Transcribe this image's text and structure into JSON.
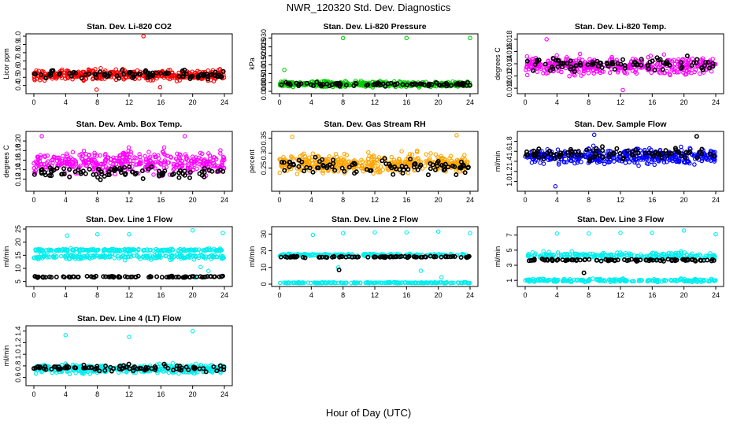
{
  "title": "NWR_120320  Std. Dev. Diagnostics",
  "xlabel": "Hour of Day (UTC)",
  "chart_data": [
    {
      "type": "scatter",
      "title": "Stan. Dev. Li-820 CO2",
      "ylabel": "Licor ppm",
      "xlim": [
        0,
        24
      ],
      "ylim": [
        0.33,
        1.0
      ],
      "xticks": [
        "0",
        "4",
        "8",
        "12",
        "16",
        "20",
        "24"
      ],
      "yticks": [
        "0.4",
        "0.5",
        "0.6",
        "0.7",
        "0.8",
        "0.9",
        "1.0"
      ],
      "series": [
        {
          "color": "#ff0000",
          "center": 0.53,
          "spread": 0.06,
          "outliers": [
            [
              13.8,
              1.0
            ],
            [
              7.9,
              0.35
            ],
            [
              15.9,
              0.38
            ]
          ]
        },
        {
          "color": "#000000",
          "center": 0.53,
          "spread": 0.05,
          "outliers": []
        }
      ]
    },
    {
      "type": "scatter",
      "title": "Stan. Dev. Li-820 Pressure",
      "ylabel": "kPa",
      "xlim": [
        0,
        24
      ],
      "ylim": [
        0,
        0.031
      ],
      "xticks": [
        "0",
        "4",
        "8",
        "12",
        "16",
        "20",
        "24"
      ],
      "yticks": [
        "0.000",
        "0.005",
        "0.010",
        "0.015",
        "0.020",
        "0.025",
        "0.030"
      ],
      "series": [
        {
          "color": "#00cc00",
          "center": 0.004,
          "spread": 0.0015,
          "outliers": [
            [
              8.0,
              0.03
            ],
            [
              16.0,
              0.03
            ],
            [
              24.0,
              0.03
            ],
            [
              0.6,
              0.012
            ]
          ]
        },
        {
          "color": "#000000",
          "center": 0.004,
          "spread": 0.0012,
          "outliers": []
        }
      ]
    },
    {
      "type": "scatter",
      "title": "Stan. Dev. Li-820 Temp.",
      "ylabel": "degrees C",
      "xlim": [
        0,
        24
      ],
      "ylim": [
        0.0095,
        0.0185
      ],
      "xticks": [
        "0",
        "4",
        "8",
        "12",
        "16",
        "20",
        "24"
      ],
      "yticks": [
        "0.010",
        "0.012",
        "0.014",
        "0.016",
        "0.018"
      ],
      "series": [
        {
          "color": "#ff00ff",
          "center": 0.0137,
          "spread": 0.0013,
          "outliers": [
            [
              2.7,
              0.018
            ],
            [
              12.3,
              0.0097
            ]
          ]
        },
        {
          "color": "#000000",
          "center": 0.0138,
          "spread": 0.0012,
          "outliers": []
        }
      ]
    },
    {
      "type": "scatter",
      "title": "Stan. Dev. Amb. Box Temp.",
      "ylabel": "degrees C",
      "xlim": [
        0,
        24
      ],
      "ylim": [
        0.1,
        0.215
      ],
      "xticks": [
        "0",
        "4",
        "8",
        "12",
        "16",
        "20",
        "24"
      ],
      "yticks": [
        "0.12",
        "0.14",
        "0.16",
        "0.18",
        "0.20"
      ],
      "series": [
        {
          "color": "#ff00ff",
          "center": 0.155,
          "spread": 0.022,
          "outliers": [
            [
              1.0,
              0.21
            ],
            [
              19.0,
              0.21
            ]
          ]
        },
        {
          "color": "#000000",
          "center": 0.135,
          "spread": 0.012,
          "outliers": []
        }
      ]
    },
    {
      "type": "scatter",
      "title": "Stan. Dev. Gas Stream RH",
      "ylabel": "percent",
      "xlim": [
        0,
        24
      ],
      "ylim": [
        0.18,
        0.365
      ],
      "xticks": [
        "0",
        "4",
        "8",
        "12",
        "16",
        "20",
        "24"
      ],
      "yticks": [
        "0.25",
        "0.30",
        "0.35"
      ],
      "series": [
        {
          "color": "#ffa500",
          "center": 0.265,
          "spread": 0.03,
          "outliers": [
            [
              1.6,
              0.355
            ],
            [
              22.3,
              0.36
            ]
          ]
        },
        {
          "color": "#000000",
          "center": 0.255,
          "spread": 0.025,
          "outliers": []
        }
      ]
    },
    {
      "type": "scatter",
      "title": "Stan. Dev. Sample Flow",
      "ylabel": "ml/min",
      "xlim": [
        0,
        24
      ],
      "ylim": [
        0.85,
        1.95
      ],
      "xticks": [
        "0",
        "4",
        "8",
        "12",
        "16",
        "20",
        "24"
      ],
      "yticks": [
        "1.0",
        "1.2",
        "1.4",
        "1.6",
        "1.8"
      ],
      "series": [
        {
          "color": "#0000ff",
          "center": 1.5,
          "spread": 0.14,
          "outliers": [
            [
              3.8,
              0.9
            ],
            [
              8.7,
              1.93
            ]
          ]
        },
        {
          "color": "#000000",
          "center": 1.55,
          "spread": 0.12,
          "outliers": [
            [
              21.6,
              1.9
            ]
          ]
        }
      ]
    },
    {
      "type": "scatter",
      "title": "Stan. Dev. Line 1 Flow",
      "ylabel": "ml/min",
      "xlim": [
        0,
        24
      ],
      "ylim": [
        4,
        25
      ],
      "xticks": [
        "0",
        "4",
        "8",
        "12",
        "16",
        "20",
        "24"
      ],
      "yticks": [
        "5",
        "10",
        "15",
        "20",
        "25"
      ],
      "series": [
        {
          "color": "#00eeee",
          "center": 14.5,
          "spread": 1.0,
          "band2": 17.0,
          "outliers": [
            [
              4.2,
              22.5
            ],
            [
              8.0,
              23
            ],
            [
              12.0,
              23
            ],
            [
              20.0,
              24.5
            ],
            [
              23.8,
              23.5
            ],
            [
              20.3,
              6.5
            ],
            [
              21.0,
              10.5
            ],
            [
              22.0,
              9
            ]
          ]
        },
        {
          "color": "#000000",
          "center": 6.8,
          "spread": 0.25,
          "outliers": []
        }
      ]
    },
    {
      "type": "scatter",
      "title": "Stan. Dev. Line 2 Flow",
      "ylabel": "ml/min",
      "xlim": [
        0,
        24
      ],
      "ylim": [
        0,
        33
      ],
      "xticks": [
        "0",
        "4",
        "8",
        "12",
        "16",
        "20",
        "24"
      ],
      "yticks": [
        "0",
        "10",
        "20",
        "30"
      ],
      "series": [
        {
          "color": "#00eeee",
          "center": 17.5,
          "spread": 0.7,
          "band2": 0.8,
          "outliers": [
            [
              4.2,
              29.5
            ],
            [
              8.0,
              30.5
            ],
            [
              12.0,
              31
            ],
            [
              16.0,
              31
            ],
            [
              20.0,
              31.5
            ],
            [
              24.0,
              30.5
            ],
            [
              7.4,
              10
            ],
            [
              17.8,
              8
            ],
            [
              20.4,
              4
            ]
          ]
        },
        {
          "color": "#000000",
          "center": 16.3,
          "spread": 0.4,
          "outliers": [
            [
              7.5,
              8.5
            ]
          ]
        }
      ]
    },
    {
      "type": "scatter",
      "title": "Stan. Dev. Line 3 Flow",
      "ylabel": "ml/min",
      "xlim": [
        0,
        24
      ],
      "ylim": [
        0.5,
        7.8
      ],
      "xticks": [
        "0",
        "4",
        "8",
        "12",
        "16",
        "20",
        "24"
      ],
      "yticks": [
        "1",
        "3",
        "5",
        "7"
      ],
      "series": [
        {
          "color": "#00eeee",
          "center": 4.3,
          "spread": 0.4,
          "band2": 1.0,
          "outliers": [
            [
              4.0,
              7.2
            ],
            [
              8.0,
              7.2
            ],
            [
              12.0,
              7.3
            ],
            [
              16.0,
              7.3
            ],
            [
              20.0,
              7.6
            ],
            [
              24.0,
              7.1
            ]
          ]
        },
        {
          "color": "#000000",
          "center": 3.7,
          "spread": 0.15,
          "outliers": [
            [
              7.4,
              2.0
            ]
          ]
        }
      ]
    },
    {
      "type": "scatter",
      "title": "Stan. Dev. Line 4 (LT) Flow",
      "ylabel": "ml/min",
      "xlim": [
        0,
        24
      ],
      "ylim": [
        0.5,
        1.45
      ],
      "xticks": [
        "0",
        "4",
        "8",
        "12",
        "16",
        "20",
        "24"
      ],
      "yticks": [
        "0.6",
        "0.8",
        "1.0",
        "1.2",
        "1.4"
      ],
      "series": [
        {
          "color": "#00eeee",
          "center": 0.75,
          "spread": 0.07,
          "outliers": [
            [
              4.0,
              1.33
            ],
            [
              12.0,
              1.3
            ],
            [
              20.0,
              1.4
            ]
          ]
        },
        {
          "color": "#000000",
          "center": 0.76,
          "spread": 0.05,
          "outliers": []
        }
      ]
    }
  ]
}
